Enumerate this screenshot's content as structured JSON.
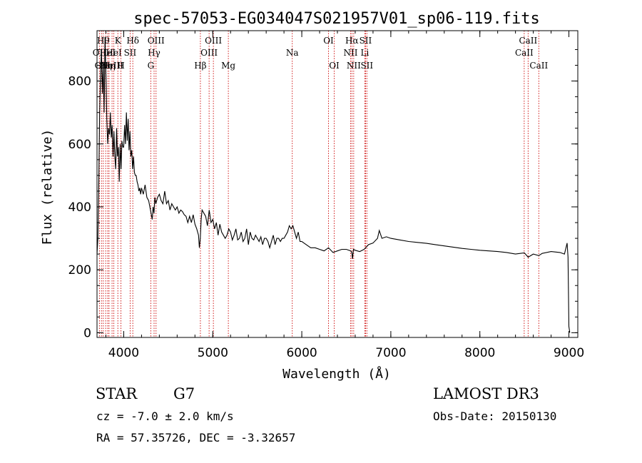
{
  "chart_data": {
    "type": "line",
    "title": "spec-57053-EG034047S021957V01_sp06-119.fits",
    "xlabel": "Wavelength (Å)",
    "ylabel": "Flux (relative)",
    "xlim": [
      3700,
      9100
    ],
    "ylim": [
      -15,
      960
    ],
    "x_ticks": [
      4000,
      5000,
      6000,
      7000,
      8000,
      9000
    ],
    "y_ticks": [
      0,
      200,
      400,
      600,
      800
    ],
    "grid": false,
    "series": [
      {
        "x": [
          3700,
          3710,
          3720,
          3730,
          3740,
          3750,
          3760,
          3770,
          3780,
          3790,
          3800,
          3810,
          3820,
          3830,
          3840,
          3850,
          3860,
          3870,
          3880,
          3890,
          3900,
          3910,
          3920,
          3930,
          3940,
          3950,
          3960,
          3970,
          3980,
          3990,
          4000,
          4010,
          4020,
          4030,
          4040,
          4050,
          4060,
          4070,
          4080,
          4090,
          4100,
          4110,
          4120,
          4130,
          4140,
          4150,
          4160,
          4170,
          4180,
          4190,
          4200,
          4220,
          4240,
          4260,
          4280,
          4300,
          4320,
          4330,
          4340,
          4350,
          4360,
          4380,
          4400,
          4420,
          4440,
          4460,
          4480,
          4500,
          4520,
          4540,
          4560,
          4580,
          4600,
          4620,
          4640,
          4660,
          4680,
          4700,
          4720,
          4740,
          4760,
          4780,
          4800,
          4820,
          4840,
          4850,
          4860,
          4870,
          4880,
          4900,
          4920,
          4940,
          4960,
          4980,
          5000,
          5020,
          5040,
          5060,
          5080,
          5100,
          5120,
          5140,
          5160,
          5180,
          5200,
          5220,
          5240,
          5260,
          5280,
          5300,
          5320,
          5340,
          5360,
          5380,
          5400,
          5420,
          5440,
          5460,
          5480,
          5500,
          5520,
          5540,
          5560,
          5580,
          5600,
          5620,
          5640,
          5660,
          5680,
          5700,
          5720,
          5740,
          5760,
          5780,
          5800,
          5820,
          5840,
          5860,
          5880,
          5900,
          5920,
          5940,
          5960,
          5980,
          6000,
          6050,
          6100,
          6150,
          6200,
          6250,
          6300,
          6350,
          6400,
          6450,
          6500,
          6550,
          6562,
          6570,
          6580,
          6600,
          6650,
          6700,
          6750,
          6800,
          6850,
          6870,
          6900,
          6950,
          7000,
          7100,
          7200,
          7300,
          7400,
          7500,
          7600,
          7700,
          7800,
          7900,
          8000,
          8100,
          8200,
          8300,
          8400,
          8500,
          8542,
          8600,
          8662,
          8700,
          8800,
          8900,
          8950,
          8980,
          8990,
          9000,
          9010
        ],
        "y": [
          250,
          300,
          480,
          700,
          820,
          900,
          760,
          850,
          700,
          940,
          820,
          680,
          600,
          650,
          630,
          700,
          620,
          660,
          560,
          640,
          560,
          520,
          650,
          560,
          590,
          480,
          600,
          520,
          610,
          590,
          590,
          660,
          600,
          700,
          610,
          680,
          580,
          640,
          560,
          580,
          520,
          560,
          510,
          500,
          500,
          480,
          470,
          450,
          460,
          440,
          460,
          440,
          470,
          430,
          420,
          390,
          360,
          400,
          380,
          430,
          410,
          430,
          440,
          420,
          410,
          450,
          410,
          420,
          390,
          410,
          400,
          390,
          400,
          380,
          390,
          385,
          375,
          370,
          350,
          370,
          350,
          375,
          345,
          330,
          310,
          270,
          300,
          360,
          390,
          380,
          370,
          340,
          390,
          350,
          360,
          330,
          350,
          310,
          345,
          320,
          310,
          300,
          310,
          330,
          320,
          295,
          310,
          330,
          295,
          300,
          320,
          290,
          300,
          330,
          280,
          320,
          300,
          295,
          310,
          300,
          290,
          305,
          280,
          300,
          300,
          290,
          270,
          290,
          310,
          280,
          300,
          300,
          290,
          300,
          300,
          310,
          320,
          340,
          330,
          340,
          320,
          300,
          320,
          290,
          290,
          280,
          270,
          270,
          265,
          260,
          270,
          255,
          260,
          265,
          265,
          260,
          255,
          235,
          265,
          262,
          258,
          265,
          280,
          285,
          300,
          325,
          300,
          305,
          300,
          295,
          290,
          287,
          284,
          280,
          276,
          272,
          268,
          265,
          262,
          260,
          258,
          255,
          250,
          254,
          240,
          250,
          245,
          252,
          258,
          255,
          250,
          285,
          240,
          20,
          0
        ]
      }
    ],
    "lines": [
      {
        "wl": 3727,
        "label": "OII",
        "row": 1
      },
      {
        "wl": 3750,
        "label": "OII",
        "row": 2
      },
      {
        "wl": 3770,
        "label": "Hθ",
        "row": 0
      },
      {
        "wl": 3797,
        "label": "Hη",
        "row": 2
      },
      {
        "wl": 3820,
        "label": "HeI",
        "row": 1
      },
      {
        "wl": 3835,
        "label": "Hη",
        "row": 2
      },
      {
        "wl": 3869,
        "label": "NeIII",
        "row": 2
      },
      {
        "wl": 3889,
        "label": "HeI",
        "row": 1
      },
      {
        "wl": 3934,
        "label": "K",
        "row": 0
      },
      {
        "wl": 3969,
        "label": "H",
        "row": 2
      },
      {
        "wl": 4072,
        "label": "SII",
        "row": 1
      },
      {
        "wl": 4102,
        "label": "Hδ",
        "row": 0
      },
      {
        "wl": 4304,
        "label": "G",
        "row": 2
      },
      {
        "wl": 4341,
        "label": "Hγ",
        "row": 1
      },
      {
        "wl": 4363,
        "label": "OIII",
        "row": 0
      },
      {
        "wl": 4861,
        "label": "Hβ",
        "row": 2
      },
      {
        "wl": 4959,
        "label": "OIII",
        "row": 1
      },
      {
        "wl": 5007,
        "label": "OIII",
        "row": 0
      },
      {
        "wl": 5175,
        "label": "Mg",
        "row": 2
      },
      {
        "wl": 5893,
        "label": "Na",
        "row": 1
      },
      {
        "wl": 6300,
        "label": "OI",
        "row": 0
      },
      {
        "wl": 6364,
        "label": "OI",
        "row": 2
      },
      {
        "wl": 6548,
        "label": "NII",
        "row": 1
      },
      {
        "wl": 6563,
        "label": "Hα",
        "row": 0
      },
      {
        "wl": 6583,
        "label": "NII",
        "row": 2
      },
      {
        "wl": 6708,
        "label": "Li",
        "row": 1
      },
      {
        "wl": 6716,
        "label": "SII",
        "row": 0
      },
      {
        "wl": 6731,
        "label": "SII",
        "row": 2
      },
      {
        "wl": 8498,
        "label": "CaII",
        "row": 1
      },
      {
        "wl": 8542,
        "label": "CaII",
        "row": 0
      },
      {
        "wl": 8662,
        "label": "CaII",
        "row": 2
      }
    ]
  },
  "info": {
    "class": "STAR",
    "subclass": "G7",
    "survey": "LAMOST DR3",
    "cz": "cz = -7.0 ± 2.0 km/s",
    "obs_date": "Obs-Date: 20150130",
    "radec": "RA =  57.35726, DEC =  -3.32657"
  },
  "colors": {
    "line_marker": "#cc0000",
    "spectrum": "#000000",
    "axes": "#000000"
  }
}
